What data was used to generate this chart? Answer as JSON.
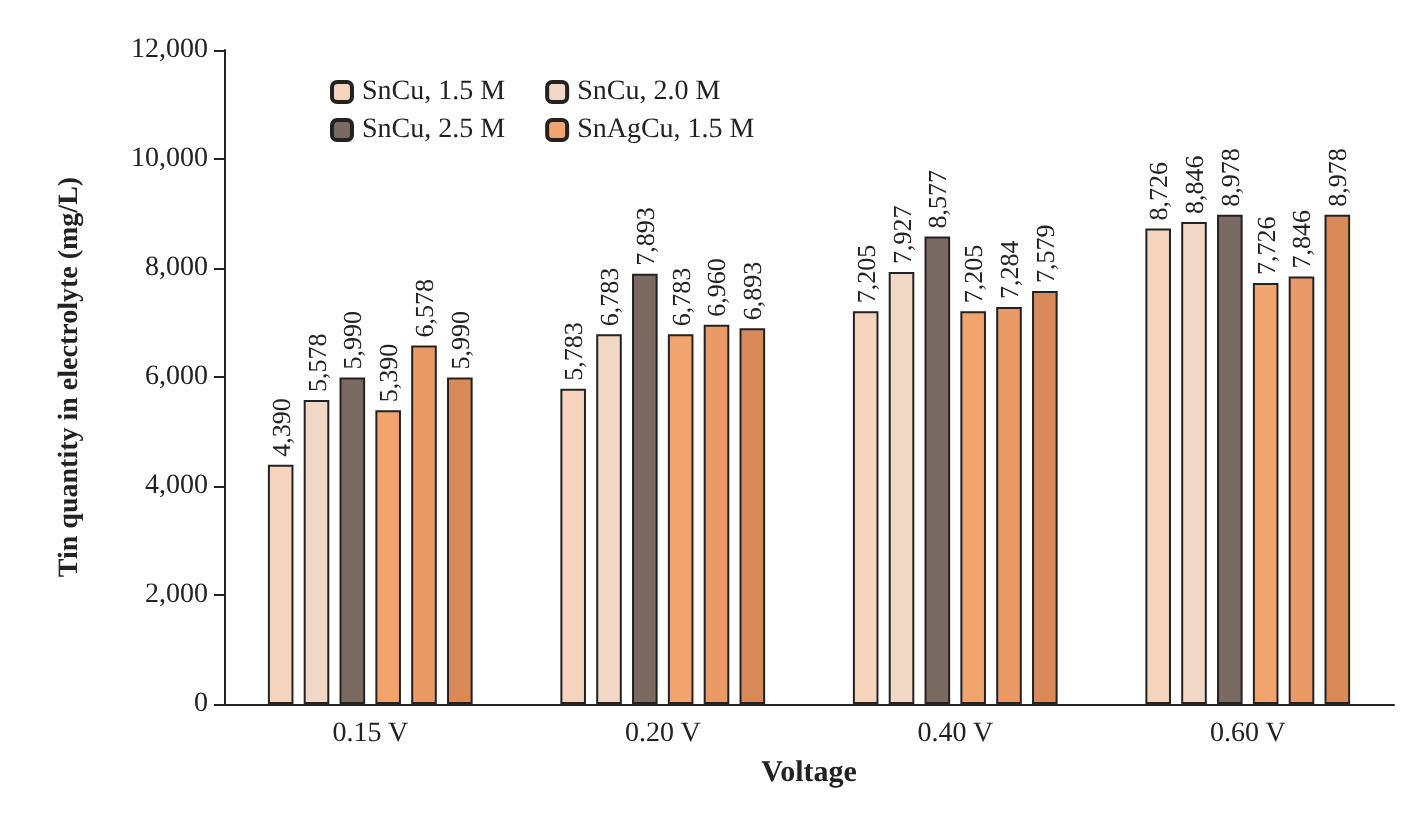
{
  "chart_data": {
    "type": "bar",
    "xlabel": "Voltage",
    "ylabel": "Tin quantity in electrolyte (mg/L)",
    "categories": [
      "0.15 V",
      "0.20 V",
      "0.40 V",
      "0.60 V"
    ],
    "series": [
      {
        "name": "SnCu, 1.5 M",
        "color": "#f6d3bd",
        "values": [
          4390,
          5783,
          7205,
          8726
        ],
        "value_labels": [
          "4,390",
          "5,783",
          "7,205",
          "8,726"
        ]
      },
      {
        "name": "SnCu, 2.0 M",
        "color": "#f1d8c6",
        "values": [
          5578,
          6783,
          7927,
          8846
        ],
        "value_labels": [
          "5,578",
          "6,783",
          "7,927",
          "8,846"
        ]
      },
      {
        "name": "SnCu, 2.5 M",
        "color": "#7a6a62",
        "values": [
          5990,
          7893,
          8577,
          8978
        ],
        "value_labels": [
          "5,990",
          "7,893",
          "8,577",
          "8,978"
        ]
      },
      {
        "name": "SnAgCu, 1.5 M",
        "color": "#f2a46e",
        "values": [
          5390,
          6783,
          7205,
          7726
        ],
        "value_labels": [
          "5,390",
          "6,783",
          "7,205",
          "7,726"
        ]
      },
      {
        "color": "#e99a66",
        "values": [
          6578,
          6960,
          7284,
          7846
        ],
        "value_labels": [
          "6,578",
          "6,960",
          "7,284",
          "7,846"
        ]
      },
      {
        "color": "#d98a58",
        "values": [
          5990,
          6893,
          7579,
          8978
        ],
        "value_labels": [
          "5,990",
          "6,893",
          "7,579",
          "8,978"
        ]
      }
    ],
    "ylim": [
      0,
      12000
    ],
    "yticks": [
      0,
      {
        "value": 2000,
        "label": "2,000"
      },
      {
        "value": 4000,
        "label": "4,000"
      },
      {
        "value": 6000,
        "label": "6,000"
      },
      {
        "value": 8000,
        "label": "8,000"
      },
      {
        "value": 10000,
        "label": "10,000"
      },
      {
        "value": 12000,
        "label": "12,000"
      }
    ],
    "grid": false,
    "legend": "top left"
  }
}
